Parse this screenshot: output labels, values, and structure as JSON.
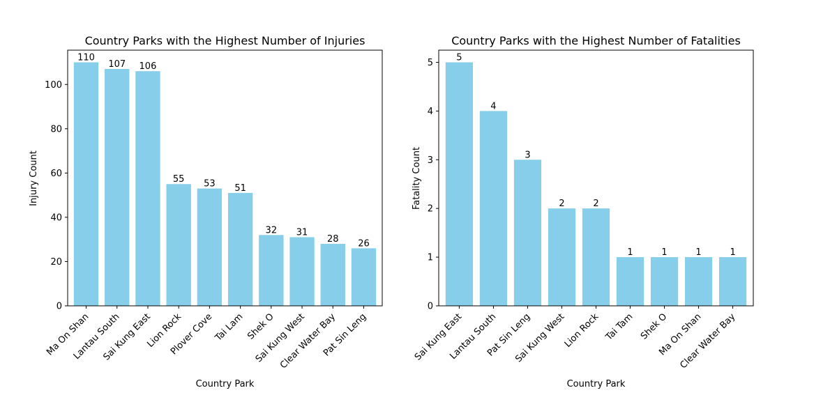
{
  "colors": {
    "bar": "#87ceeb",
    "axis": "#000000",
    "background": "#ffffff"
  },
  "chart_data": [
    {
      "type": "bar",
      "title": "Country Parks with the Highest Number of Injuries",
      "xlabel": "Country Park",
      "ylabel": "Injury Count",
      "ylim": [
        0,
        115.5
      ],
      "yticks": [
        0,
        20,
        40,
        60,
        80,
        100
      ],
      "grid": false,
      "categories": [
        "Ma On Shan",
        "Lantau South",
        "Sai Kung East",
        "Lion Rock",
        "Plover Cove",
        "Tai Lam",
        "Shek O",
        "Sai Kung West",
        "Clear Water Bay",
        "Pat Sin Leng"
      ],
      "values": [
        110,
        107,
        106,
        55,
        53,
        51,
        32,
        31,
        28,
        26
      ]
    },
    {
      "type": "bar",
      "title": "Country Parks with the Highest Number of Fatalities",
      "xlabel": "Country Park",
      "ylabel": "Fatality Count",
      "ylim": [
        0,
        5.25
      ],
      "yticks": [
        0,
        1,
        2,
        3,
        4,
        5
      ],
      "grid": false,
      "categories": [
        "Sai Kung East",
        "Lantau South",
        "Pat Sin Leng",
        "Sai Kung West",
        "Lion Rock",
        "Tai Tam",
        "Shek O",
        "Ma On Shan",
        "Clear Water Bay"
      ],
      "values": [
        5,
        4,
        3,
        2,
        2,
        1,
        1,
        1,
        1
      ]
    }
  ]
}
